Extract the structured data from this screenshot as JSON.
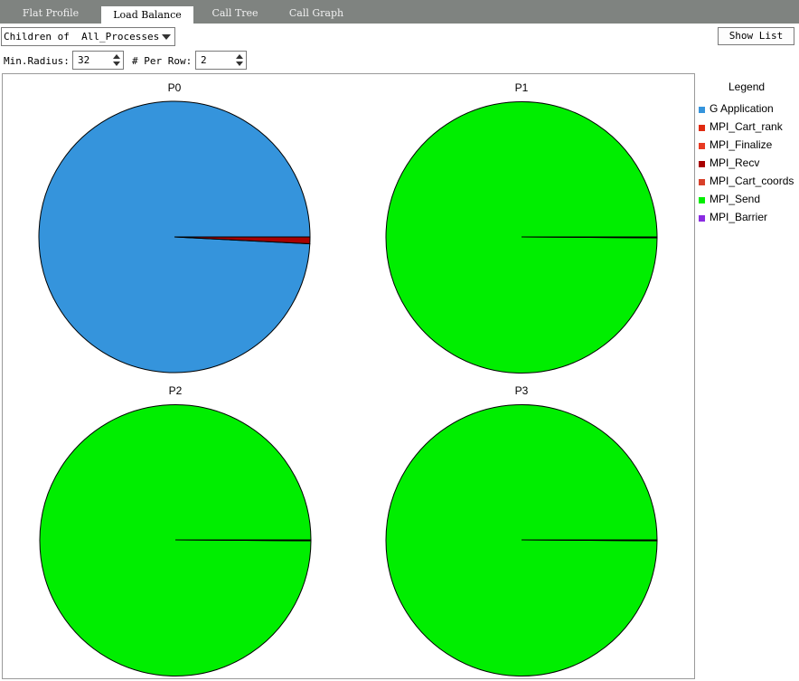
{
  "tabs": [
    {
      "label": "Flat Profile",
      "active": false
    },
    {
      "label": "Load Balance",
      "active": true
    },
    {
      "label": "Call Tree",
      "active": false
    },
    {
      "label": "Call Graph",
      "active": false
    }
  ],
  "controls": {
    "scope_select": "Children of  All_Processes",
    "show_list_label": "Show List",
    "min_radius_label": "Min.Radius:",
    "min_radius_value": "32",
    "per_row_label": "# Per Row:",
    "per_row_value": "2"
  },
  "legend": {
    "title": "Legend",
    "items": [
      {
        "label": "G Application",
        "color": "#3594dc"
      },
      {
        "label": "MPI_Cart_rank",
        "color": "#e02a10"
      },
      {
        "label": "MPI_Finalize",
        "color": "#e83a22"
      },
      {
        "label": "MPI_Recv",
        "color": "#a80000"
      },
      {
        "label": "MPI_Cart_coords",
        "color": "#d8402a"
      },
      {
        "label": "MPI_Send",
        "color": "#00ee00"
      },
      {
        "label": "MPI_Barrier",
        "color": "#8a2be2"
      }
    ]
  },
  "pies": [
    {
      "title": "P0",
      "slices": [
        {
          "name": "G Application",
          "fraction": 0.992,
          "color": "#3594dc"
        },
        {
          "name": "MPI_Recv",
          "fraction": 0.008,
          "color": "#a80000"
        }
      ]
    },
    {
      "title": "P1",
      "slices": [
        {
          "name": "MPI_Send",
          "fraction": 0.999,
          "color": "#00ee00"
        },
        {
          "name": "G Application",
          "fraction": 0.001,
          "color": "#3594dc"
        }
      ]
    },
    {
      "title": "P2",
      "slices": [
        {
          "name": "MPI_Send",
          "fraction": 0.999,
          "color": "#00ee00"
        },
        {
          "name": "G Application",
          "fraction": 0.001,
          "color": "#3594dc"
        }
      ]
    },
    {
      "title": "P3",
      "slices": [
        {
          "name": "MPI_Send",
          "fraction": 0.999,
          "color": "#00ee00"
        },
        {
          "name": "G Application",
          "fraction": 0.001,
          "color": "#3594dc"
        }
      ]
    }
  ]
}
